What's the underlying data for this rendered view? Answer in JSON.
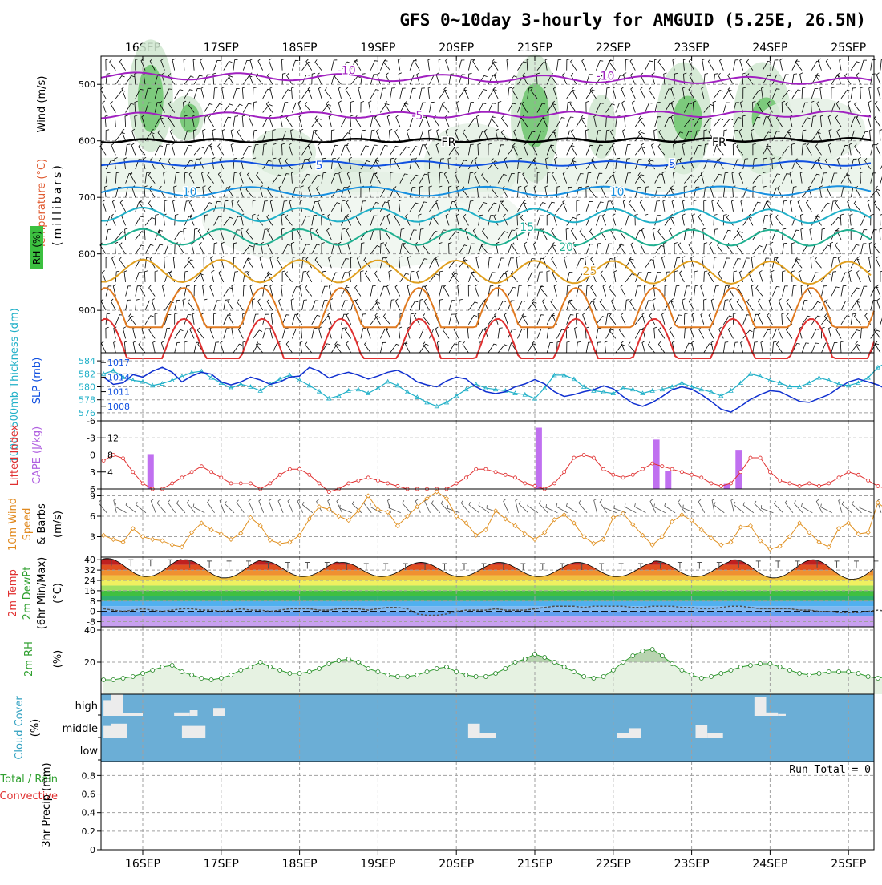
{
  "title": "GFS 0~10day 3-hourly for AMGUID (5.25E, 26.5N)",
  "date_labels": [
    "16SEP",
    "17SEP",
    "18SEP",
    "19SEP",
    "20SEP",
    "21SEP",
    "22SEP",
    "23SEP",
    "24SEP",
    "25SEP"
  ],
  "colors": {
    "grid": "#a0a0a0",
    "frame": "#000000",
    "purple": "#a020c0",
    "blue": "#1050e0",
    "cyan": "#20b0c8",
    "red": "#e03030",
    "orange": "#e07a20",
    "green": "#30a030",
    "cloud_bg": "#6baed6"
  },
  "panels": {
    "upper": {
      "ylabel_wind": "Wind (m/s)",
      "ylabel_temp": "Temperature (°C)",
      "ylabel_rh": "RH (%)",
      "ylabel_pressure": "(millibars)",
      "ticks": [
        "500",
        "600",
        "700",
        "800",
        "900"
      ],
      "contour_labels": [
        {
          "text": "-10",
          "color": "#a020c0"
        },
        {
          "text": "-10",
          "color": "#a020c0"
        },
        {
          "text": "-5",
          "color": "#a020c0"
        },
        {
          "text": "FR",
          "color": "#000000"
        },
        {
          "text": "FR",
          "color": "#000000"
        },
        {
          "text": "5",
          "color": "#1050e0"
        },
        {
          "text": "5",
          "color": "#1050e0"
        },
        {
          "text": "10",
          "color": "#1890e0"
        },
        {
          "text": "10",
          "color": "#1890e0"
        },
        {
          "text": "15",
          "color": "#20b0a0"
        },
        {
          "text": "20",
          "color": "#20b090"
        },
        {
          "text": "25",
          "color": "#e0a020"
        }
      ]
    },
    "thick": {
      "ylabel_thick": "1000~500mb Thickness (dm)",
      "ylabel_slp": "SLP (mb)",
      "ticks_left": [
        "584",
        "582",
        "580",
        "578",
        "576"
      ],
      "ticks_right": [
        "1017",
        "1014",
        "1011",
        "1008"
      ]
    },
    "cape": {
      "ylabel_li": "Lifted Index",
      "ylabel_cape": "CAPE (J/kg)",
      "ticks_left": [
        "-6",
        "-3",
        "0",
        "3",
        "6"
      ],
      "ticks_right": [
        "12",
        "8",
        "4"
      ]
    },
    "wind10": {
      "ylabel1": "10m Wind",
      "ylabel2": "Speed",
      "ylabel3": "& Barbs",
      "ylabel_unit": "(m/s)",
      "ticks": [
        "9",
        "6",
        "3"
      ]
    },
    "temp": {
      "ylabel1": "2m Temp",
      "ylabel2": "2m DewPt",
      "ylabel3": "(6hr Min/Max)",
      "ylabel_unit": "(°C)",
      "ticks": [
        "40",
        "32",
        "24",
        "16",
        "8",
        "0",
        "-8"
      ]
    },
    "rh": {
      "ylabel": "2m RH",
      "ylabel_unit": "(%)",
      "ticks": [
        "40",
        "20"
      ]
    },
    "cloud": {
      "ylabel": "Cloud Cover",
      "ylabel_unit": "(%)",
      "levels": [
        "high",
        "middle",
        "low"
      ]
    },
    "precip": {
      "ylabel1": "Total / Rain",
      "ylabel2": "Convective",
      "ylabel3": "3hr Precip (mm)",
      "ticks": [
        "0.8",
        "0.6",
        "0.4",
        "0.2",
        "0"
      ],
      "run_total": "Run Total = 0"
    }
  },
  "chart_data": [
    {
      "type": "line",
      "name": "thickness_slp",
      "series": [
        {
          "name": "1000-500mb Thickness",
          "unit": "dm",
          "values": [
            582.0,
            582.5,
            581.5,
            581.0,
            580.8,
            580.2,
            580.5,
            581.0,
            581.6,
            582.2,
            582.4,
            581.4,
            580.6,
            579.8,
            580.4,
            580.0,
            579.4,
            580.4,
            581.2,
            581.8,
            581.0,
            580.2,
            579.3,
            578.2,
            578.6,
            579.4,
            579.6,
            579.0,
            579.8,
            580.8,
            580.2,
            579.2,
            578.4,
            577.6,
            577.0,
            577.6,
            578.6,
            579.6,
            580.4,
            579.8,
            579.6,
            579.4,
            579.0,
            578.8,
            578.2,
            579.8,
            581.8,
            581.8,
            581.2,
            580.0,
            579.4,
            579.2,
            579.0,
            579.8,
            579.6,
            579.0,
            579.4,
            579.6,
            580.0,
            580.6,
            580.0,
            579.6,
            579.2,
            578.6,
            579.4,
            580.6,
            582.0,
            581.6,
            581.0,
            580.6,
            580.0,
            580.0,
            580.6,
            581.4,
            581.0,
            580.4,
            580.2,
            580.6,
            581.4,
            583.0,
            583.8,
            583.0,
            581.6,
            580.2,
            580.6,
            579.6,
            580.2,
            580.8,
            581.4,
            581.0,
            580.4,
            579.0,
            577.8,
            576.0
          ]
        },
        {
          "name": "SLP",
          "unit": "mb",
          "values": [
            1014.0,
            1012.5,
            1012.8,
            1014.5,
            1014.0,
            1015.2,
            1016.0,
            1015.0,
            1013.0,
            1014.2,
            1015.0,
            1014.6,
            1013.0,
            1012.4,
            1013.0,
            1014.0,
            1013.4,
            1012.5,
            1013.0,
            1014.0,
            1014.2,
            1016.0,
            1015.2,
            1013.8,
            1014.5,
            1015.0,
            1014.4,
            1013.6,
            1014.2,
            1015.0,
            1015.4,
            1014.4,
            1013.0,
            1012.4,
            1012.0,
            1013.2,
            1014.0,
            1013.6,
            1012.0,
            1011.0,
            1010.6,
            1011.0,
            1012.0,
            1012.6,
            1013.5,
            1012.6,
            1011.0,
            1010.0,
            1010.4,
            1011.0,
            1011.4,
            1012.2,
            1011.6,
            1010.0,
            1008.6,
            1008.0,
            1008.8,
            1010.0,
            1011.4,
            1012.0,
            1011.5,
            1010.4,
            1009.0,
            1007.4,
            1006.8,
            1008.0,
            1009.4,
            1010.4,
            1011.2,
            1011.0,
            1010.0,
            1009.0,
            1008.8,
            1009.6,
            1010.4,
            1011.8,
            1013.0,
            1013.6,
            1013.0,
            1012.4,
            1011.4,
            1012.0,
            1011.6,
            1011.2,
            1012.4,
            1013.6,
            1013.0,
            1012.4,
            1014.0,
            1014.6,
            1014.0,
            1015.2,
            1016.0,
            1017.5
          ]
        }
      ]
    },
    {
      "type": "bar",
      "name": "cape_lifted_index",
      "cape_bars": [
        {
          "day": 0.1,
          "value": 8.2
        },
        {
          "day": 5.05,
          "value": 14.4
        },
        {
          "day": 6.55,
          "value": 11.6
        },
        {
          "day": 6.7,
          "value": 4.2
        },
        {
          "day": 7.45,
          "value": 1.2
        },
        {
          "day": 7.6,
          "value": 9.2
        }
      ],
      "lifted_index": [
        1.0,
        0.0,
        0.6,
        3.0,
        5.0,
        6.0,
        6.0,
        5.0,
        4.0,
        3.0,
        2.0,
        3.0,
        4.0,
        5.0,
        5.0,
        5.0,
        6.0,
        5.0,
        3.5,
        2.5,
        2.5,
        3.5,
        5.0,
        6.5,
        6.0,
        5.0,
        4.5,
        4.0,
        4.5,
        5.0,
        5.5,
        6.0,
        6.0,
        6.0,
        6.0,
        6.0,
        5.0,
        4.0,
        2.5,
        2.5,
        3.0,
        3.5,
        4.0,
        5.0,
        5.5,
        6.0,
        5.0,
        3.0,
        0.5,
        0.0,
        0.5,
        2.5,
        3.5,
        4.0,
        3.5,
        2.5,
        1.5,
        2.0,
        2.5,
        3.0,
        3.5,
        4.0,
        5.0,
        5.5,
        5.0,
        3.0,
        0.5,
        0.5,
        3.0,
        4.5,
        5.0,
        5.5,
        5.0,
        5.5,
        5.0,
        4.0,
        3.0,
        3.5,
        4.5,
        5.5,
        6.0,
        6.0,
        5.5,
        4.5,
        3.5,
        2.0,
        3.0,
        4.0,
        5.0,
        5.5,
        4.5,
        3.5,
        2.0,
        0.5
      ]
    },
    {
      "type": "line",
      "name": "10m_wind_speed",
      "unit": "m/s",
      "values": [
        3.2,
        2.6,
        2.2,
        4.2,
        3.0,
        2.6,
        2.4,
        1.8,
        1.5,
        3.6,
        5.0,
        4.0,
        3.4,
        2.6,
        3.5,
        5.8,
        4.6,
        2.5,
        2.0,
        2.2,
        3.2,
        5.6,
        7.4,
        7.0,
        6.0,
        5.4,
        6.8,
        9.0,
        7.0,
        6.6,
        4.6,
        6.0,
        7.4,
        8.6,
        9.6,
        8.6,
        6.0,
        5.0,
        3.2,
        4.0,
        6.8,
        5.6,
        4.6,
        3.4,
        2.6,
        3.6,
        5.5,
        6.2,
        5.0,
        3.0,
        2.0,
        2.6,
        5.8,
        6.4,
        4.8,
        3.2,
        1.8,
        3.0,
        5.2,
        6.2,
        5.4,
        4.0,
        2.8,
        1.8,
        2.2,
        4.4,
        4.6,
        2.4,
        1.2,
        1.6,
        3.0,
        5.0,
        3.6,
        2.2,
        1.5,
        4.2,
        5.0,
        3.4,
        3.6,
        8.0,
        6.8,
        5.6,
        4.2,
        2.2,
        1.8,
        3.0,
        6.2,
        5.0,
        4.6,
        3.0,
        2.0,
        5.6,
        4.8,
        3.0
      ]
    },
    {
      "type": "area",
      "name": "2m_temp_dewpt",
      "unit": "°C",
      "temp_max_by_day": [
        41,
        40,
        39,
        38,
        38,
        38,
        38,
        39,
        40,
        40
      ],
      "temp_min_by_day": [
        27,
        26,
        27,
        27,
        27,
        27,
        27,
        27,
        26,
        25
      ],
      "dewpt": [
        2,
        1,
        0,
        1,
        2,
        1,
        0,
        1,
        2,
        2,
        1,
        1,
        0,
        1,
        2,
        1,
        1,
        0,
        1,
        2,
        2,
        2,
        1,
        1,
        2,
        2,
        2,
        1,
        2,
        3,
        3,
        2,
        -2,
        -3,
        -3,
        -2,
        0,
        1,
        1,
        1,
        2,
        1,
        1,
        1,
        2,
        3,
        4,
        4,
        4,
        3,
        4,
        4,
        4,
        4,
        3,
        3,
        4,
        4,
        4,
        3,
        3,
        2,
        2,
        3,
        4,
        4,
        3,
        2,
        2,
        2,
        2,
        1,
        1,
        0,
        0,
        -1,
        -1,
        -1,
        0,
        1,
        0,
        -1,
        -2,
        -2,
        -2,
        -2,
        -1,
        -1,
        0,
        1,
        2,
        4,
        6,
        9
      ]
    },
    {
      "type": "area",
      "name": "2m_rh",
      "unit": "%",
      "values": [
        9,
        9,
        10,
        11,
        13,
        15,
        17,
        18,
        14,
        12,
        10,
        9,
        10,
        12,
        15,
        17,
        20,
        17,
        15,
        13,
        13,
        14,
        16,
        19,
        21,
        22,
        20,
        16,
        14,
        12,
        11,
        11,
        12,
        14,
        16,
        17,
        14,
        12,
        11,
        11,
        13,
        16,
        20,
        22,
        25,
        23,
        20,
        17,
        14,
        11,
        10,
        11,
        15,
        20,
        24,
        27,
        28,
        24,
        19,
        15,
        12,
        10,
        11,
        13,
        15,
        17,
        18,
        19,
        19,
        17,
        15,
        13,
        12,
        13,
        14,
        14,
        14,
        13,
        11,
        10,
        11,
        13,
        15,
        15,
        15,
        13,
        11,
        10,
        10,
        12,
        16,
        22,
        30,
        36,
        40
      ]
    },
    {
      "type": "bar",
      "name": "cloud_cover",
      "unit": "%",
      "levels": [
        "high",
        "middle",
        "low"
      ],
      "blocks": [
        {
          "level": "high",
          "start_day": 0.0,
          "end_day": 0.1,
          "value": 70
        },
        {
          "level": "high",
          "start_day": 0.1,
          "end_day": 0.25,
          "value": 95
        },
        {
          "level": "high",
          "start_day": 0.25,
          "end_day": 0.5,
          "value": 12
        },
        {
          "level": "high",
          "start_day": 0.9,
          "end_day": 1.1,
          "value": 15
        },
        {
          "level": "high",
          "start_day": 1.1,
          "end_day": 1.2,
          "value": 25
        },
        {
          "level": "high",
          "start_day": 1.4,
          "end_day": 1.55,
          "value": 35
        },
        {
          "level": "high",
          "start_day": 8.3,
          "end_day": 8.45,
          "value": 85
        },
        {
          "level": "high",
          "start_day": 8.45,
          "end_day": 8.6,
          "value": 15
        },
        {
          "level": "high",
          "start_day": 8.6,
          "end_day": 8.7,
          "value": 8
        },
        {
          "level": "middle",
          "start_day": 0.0,
          "end_day": 0.1,
          "value": 55
        },
        {
          "level": "middle",
          "start_day": 0.1,
          "end_day": 0.3,
          "value": 65
        },
        {
          "level": "middle",
          "start_day": 1.0,
          "end_day": 1.3,
          "value": 55
        },
        {
          "level": "middle",
          "start_day": 4.65,
          "end_day": 4.8,
          "value": 65
        },
        {
          "level": "middle",
          "start_day": 4.8,
          "end_day": 5.0,
          "value": 25
        },
        {
          "level": "middle",
          "start_day": 6.55,
          "end_day": 6.7,
          "value": 25
        },
        {
          "level": "middle",
          "start_day": 6.7,
          "end_day": 6.85,
          "value": 45
        },
        {
          "level": "middle",
          "start_day": 7.55,
          "end_day": 7.7,
          "value": 60
        },
        {
          "level": "middle",
          "start_day": 7.7,
          "end_day": 7.9,
          "value": 25
        }
      ]
    },
    {
      "type": "bar",
      "name": "3hr_precip",
      "unit": "mm",
      "ylim": [
        0,
        0.95
      ],
      "values": []
    }
  ]
}
